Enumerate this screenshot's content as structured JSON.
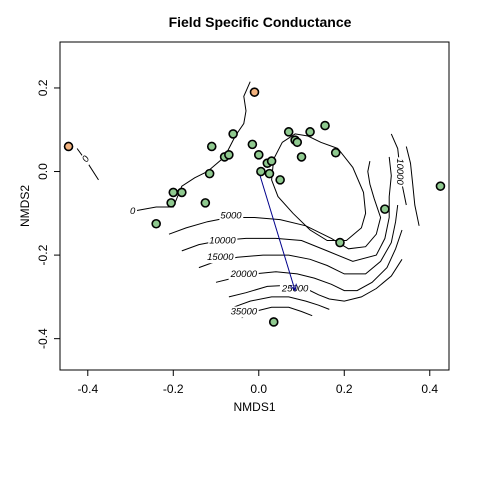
{
  "chart_data": {
    "type": "scatter",
    "title": "Field Specific Conductance",
    "xlabel": "NMDS1",
    "ylabel": "NMDS2",
    "xlim": [
      -0.465,
      0.445
    ],
    "ylim": [
      -0.475,
      0.31
    ],
    "x_ticks": [
      -0.4,
      -0.2,
      0.0,
      0.2,
      0.4
    ],
    "y_ticks": [
      -0.4,
      -0.2,
      0.0,
      0.2
    ],
    "x_tick_labels": [
      "-0.4",
      "-0.2",
      "0.0",
      "0.2",
      "0.4"
    ],
    "y_tick_labels": [
      "-0.4",
      "-0.2",
      "0.0",
      "0.2"
    ],
    "grid": false,
    "legend": "none",
    "colors": {
      "site": "#8fc98f",
      "outlier_site": "#f2b27e",
      "vector": "#00008b",
      "contour": "#000000"
    },
    "points": [
      {
        "x": -0.445,
        "y": 0.06,
        "group": "outlier"
      },
      {
        "x": -0.01,
        "y": 0.19,
        "group": "outlier"
      },
      {
        "x": -0.24,
        "y": -0.125,
        "group": "site"
      },
      {
        "x": -0.205,
        "y": -0.075,
        "group": "site"
      },
      {
        "x": -0.2,
        "y": -0.05,
        "group": "site"
      },
      {
        "x": -0.18,
        "y": -0.05,
        "group": "site"
      },
      {
        "x": -0.125,
        "y": -0.075,
        "group": "site"
      },
      {
        "x": -0.115,
        "y": -0.005,
        "group": "site"
      },
      {
        "x": -0.11,
        "y": 0.06,
        "group": "site"
      },
      {
        "x": -0.08,
        "y": 0.035,
        "group": "site"
      },
      {
        "x": -0.07,
        "y": 0.04,
        "group": "site"
      },
      {
        "x": -0.06,
        "y": 0.09,
        "group": "site"
      },
      {
        "x": -0.015,
        "y": 0.065,
        "group": "site"
      },
      {
        "x": 0.0,
        "y": 0.04,
        "group": "site"
      },
      {
        "x": 0.005,
        "y": 0.0,
        "group": "site"
      },
      {
        "x": 0.02,
        "y": 0.02,
        "group": "site"
      },
      {
        "x": 0.03,
        "y": 0.025,
        "group": "site"
      },
      {
        "x": 0.025,
        "y": -0.005,
        "group": "site"
      },
      {
        "x": 0.05,
        "y": -0.02,
        "group": "site"
      },
      {
        "x": 0.07,
        "y": 0.095,
        "group": "site"
      },
      {
        "x": 0.085,
        "y": 0.075,
        "group": "site"
      },
      {
        "x": 0.09,
        "y": 0.07,
        "group": "site"
      },
      {
        "x": 0.1,
        "y": 0.035,
        "group": "site"
      },
      {
        "x": 0.12,
        "y": 0.095,
        "group": "site"
      },
      {
        "x": 0.155,
        "y": 0.11,
        "group": "site"
      },
      {
        "x": 0.18,
        "y": 0.045,
        "group": "site"
      },
      {
        "x": 0.19,
        "y": -0.17,
        "group": "site"
      },
      {
        "x": 0.295,
        "y": -0.09,
        "group": "site"
      },
      {
        "x": 0.425,
        "y": -0.035,
        "group": "site"
      },
      {
        "x": 0.035,
        "y": -0.36,
        "group": "site"
      }
    ],
    "vector": {
      "x0": 0.0,
      "y0": 0.0,
      "x1": 0.085,
      "y1": -0.285
    },
    "contours": [
      {
        "label": "0",
        "points": [
          [
            -0.425,
            0.055
          ],
          [
            -0.4,
            0.02
          ],
          [
            -0.375,
            -0.02
          ]
        ],
        "label_at": [
          -0.405,
          0.03
        ],
        "label_angle": -55
      },
      {
        "label": "0",
        "points": [
          [
            -0.295,
            -0.095
          ],
          [
            -0.24,
            -0.085
          ],
          [
            -0.2,
            -0.085
          ],
          [
            -0.18,
            -0.035
          ],
          [
            -0.15,
            -0.015
          ],
          [
            -0.12,
            0.0
          ],
          [
            -0.08,
            0.035
          ],
          [
            -0.055,
            0.085
          ],
          [
            -0.035,
            0.115
          ],
          [
            -0.03,
            0.145
          ],
          [
            -0.035,
            0.18
          ],
          [
            -0.02,
            0.215
          ]
        ],
        "label_at": [
          -0.295,
          -0.095
        ],
        "label_angle": 0
      },
      {
        "label": "",
        "points": [
          [
            0.185,
            0.055
          ],
          [
            0.22,
            0.01
          ],
          [
            0.245,
            -0.05
          ],
          [
            0.25,
            -0.1
          ],
          [
            0.24,
            -0.135
          ],
          [
            0.205,
            -0.165
          ],
          [
            0.16,
            -0.165
          ],
          [
            0.12,
            -0.14
          ],
          [
            0.08,
            -0.1
          ],
          [
            0.045,
            -0.06
          ],
          [
            0.03,
            -0.02
          ],
          [
            0.035,
            0.03
          ],
          [
            0.055,
            0.07
          ],
          [
            0.085,
            0.09
          ],
          [
            0.115,
            0.085
          ],
          [
            0.145,
            0.07
          ],
          [
            0.185,
            0.055
          ]
        ],
        "label_at": null,
        "label_angle": 0
      },
      {
        "label": "5000",
        "points": [
          [
            -0.21,
            -0.15
          ],
          [
            -0.17,
            -0.135
          ],
          [
            -0.12,
            -0.12
          ],
          [
            -0.07,
            -0.11
          ],
          [
            -0.01,
            -0.11
          ],
          [
            0.05,
            -0.115
          ],
          [
            0.11,
            -0.13
          ],
          [
            0.17,
            -0.16
          ],
          [
            0.21,
            -0.185
          ],
          [
            0.25,
            -0.18
          ],
          [
            0.275,
            -0.15
          ],
          [
            0.285,
            -0.11
          ],
          [
            0.27,
            -0.065
          ],
          [
            0.26,
            -0.03
          ],
          [
            0.255,
            0.0
          ],
          [
            0.26,
            0.025
          ]
        ],
        "label_at": [
          -0.065,
          -0.105
        ],
        "label_angle": 0
      },
      {
        "label": "10000",
        "points": [
          [
            -0.18,
            -0.19
          ],
          [
            -0.14,
            -0.175
          ],
          [
            -0.09,
            -0.165
          ],
          [
            -0.03,
            -0.16
          ],
          [
            0.04,
            -0.16
          ],
          [
            0.1,
            -0.165
          ],
          [
            0.16,
            -0.19
          ],
          [
            0.22,
            -0.215
          ],
          [
            0.275,
            -0.2
          ],
          [
            0.295,
            -0.16
          ],
          [
            0.305,
            -0.11
          ],
          [
            0.305,
            -0.06
          ],
          [
            0.31,
            -0.01
          ],
          [
            0.305,
            0.035
          ]
        ],
        "label_at": [
          -0.085,
          -0.165
        ],
        "label_angle": 0
      },
      {
        "label": "15000",
        "points": [
          [
            -0.14,
            -0.23
          ],
          [
            -0.1,
            -0.215
          ],
          [
            -0.05,
            -0.205
          ],
          [
            0.01,
            -0.2
          ],
          [
            0.07,
            -0.2
          ],
          [
            0.12,
            -0.21
          ],
          [
            0.16,
            -0.225
          ],
          [
            0.2,
            -0.245
          ],
          [
            0.25,
            -0.245
          ],
          [
            0.285,
            -0.215
          ],
          [
            0.31,
            -0.17
          ],
          [
            0.32,
            -0.12
          ],
          [
            0.325,
            -0.08
          ]
        ],
        "label_at": [
          -0.09,
          -0.205
        ],
        "label_angle": 0
      },
      {
        "label": "20000",
        "points": [
          [
            -0.1,
            -0.265
          ],
          [
            -0.06,
            -0.255
          ],
          [
            -0.01,
            -0.245
          ],
          [
            0.04,
            -0.24
          ],
          [
            0.09,
            -0.245
          ],
          [
            0.13,
            -0.255
          ],
          [
            0.17,
            -0.27
          ],
          [
            0.2,
            -0.285
          ],
          [
            0.23,
            -0.285
          ],
          [
            0.265,
            -0.265
          ],
          [
            0.3,
            -0.23
          ],
          [
            0.32,
            -0.185
          ],
          [
            0.335,
            -0.14
          ]
        ],
        "label_at": [
          -0.035,
          -0.245
        ],
        "label_angle": 0
      },
      {
        "label": "25000",
        "points": [
          [
            -0.07,
            -0.3
          ],
          [
            -0.03,
            -0.29
          ],
          [
            0.02,
            -0.275
          ],
          [
            0.07,
            -0.272
          ],
          [
            0.11,
            -0.28
          ],
          [
            0.14,
            -0.295
          ],
          [
            0.165,
            -0.305
          ],
          [
            0.2,
            -0.31
          ],
          [
            0.24,
            -0.3
          ],
          [
            0.275,
            -0.28
          ],
          [
            0.31,
            -0.25
          ],
          [
            0.335,
            -0.21
          ]
        ],
        "label_at": [
          0.085,
          -0.28
        ],
        "label_angle": 0
      },
      {
        "label": "",
        "points": [
          [
            -0.06,
            -0.325
          ],
          [
            -0.02,
            -0.31
          ],
          [
            0.03,
            -0.3
          ],
          [
            0.07,
            -0.3
          ],
          [
            0.11,
            -0.31
          ],
          [
            0.14,
            -0.32
          ],
          [
            0.165,
            -0.33
          ]
        ],
        "label_at": null,
        "label_angle": 0
      },
      {
        "label": "35000",
        "points": [
          [
            -0.04,
            -0.35
          ],
          [
            -0.01,
            -0.335
          ],
          [
            0.03,
            -0.325
          ],
          [
            0.07,
            -0.325
          ],
          [
            0.1,
            -0.335
          ],
          [
            0.125,
            -0.345
          ]
        ],
        "label_at": [
          -0.035,
          -0.335
        ],
        "label_angle": 0
      },
      {
        "label": "10000",
        "points": [
          [
            0.31,
            0.09
          ],
          [
            0.325,
            0.055
          ],
          [
            0.33,
            0.01
          ],
          [
            0.335,
            -0.03
          ],
          [
            0.345,
            -0.08
          ]
        ],
        "label_at": [
          0.33,
          0.0
        ],
        "label_angle": 90
      },
      {
        "label": "",
        "points": [
          [
            0.345,
            0.06
          ],
          [
            0.355,
            0.02
          ],
          [
            0.36,
            -0.03
          ],
          [
            0.365,
            -0.08
          ],
          [
            0.375,
            -0.13
          ]
        ],
        "label_at": null,
        "label_angle": 0
      }
    ]
  }
}
